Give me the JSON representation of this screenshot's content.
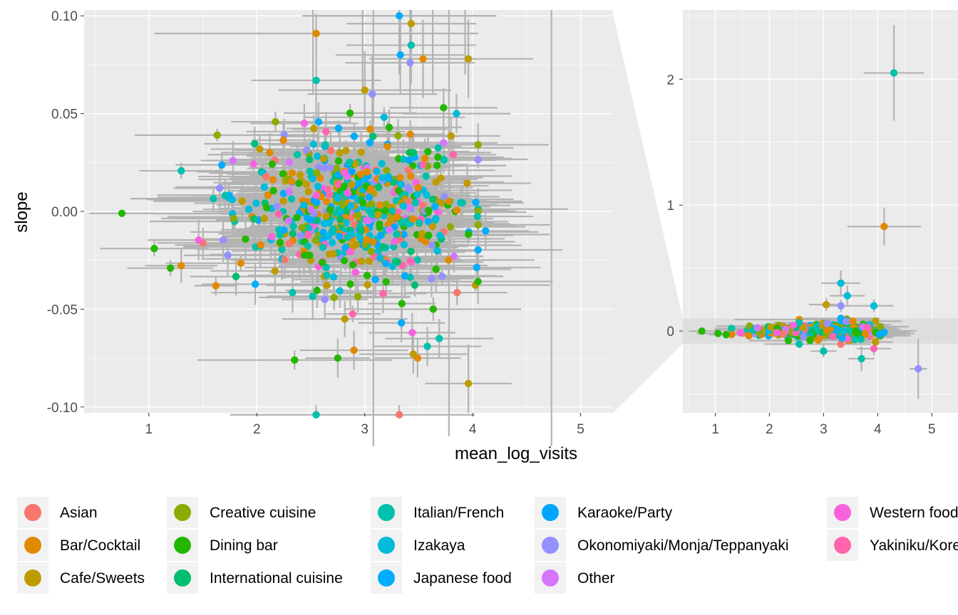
{
  "chart_data": [
    {
      "panel": "main",
      "type": "scatter",
      "subtype": "scatter with horizontal and vertical error bars",
      "xlabel": "mean_log_visits",
      "ylabel": "slope",
      "xlim": [
        0.4,
        5.3
      ],
      "ylim": [
        -0.103,
        0.103
      ],
      "x_ticks": [
        1,
        2,
        3,
        4,
        5
      ],
      "x_tick_labels": [
        "1",
        "2",
        "3",
        "4",
        "5"
      ],
      "y_ticks": [
        -0.1,
        -0.05,
        0,
        0.05,
        0.1
      ],
      "y_tick_labels": [
        "-0.10",
        "-0.05",
        "0.00",
        "0.05",
        "0.10"
      ],
      "grid": true,
      "error_bar_color": "#B3B3B3",
      "points": [
        {
          "x": 0.75,
          "y": -0.001,
          "category": "Dining bar",
          "xerr": 0.3,
          "yerr": 0
        },
        {
          "x": 1.05,
          "y": -0.019,
          "category": "Dining bar",
          "xerr": 0.5,
          "yerr": 0.004
        },
        {
          "x": 1.2,
          "y": -0.029,
          "category": "Dining bar",
          "xerr": 0.4,
          "yerr": 0.004
        },
        {
          "x": 1.62,
          "y": -0.038,
          "category": "Bar/Cocktail",
          "xerr": 0.2,
          "yerr": 0.005
        },
        {
          "x": 2.35,
          "y": -0.076,
          "category": "Dining bar",
          "xerr": 0.9,
          "yerr": 0.005
        },
        {
          "x": 2.55,
          "y": -0.104,
          "category": "Italian/French",
          "xerr": 0.8,
          "yerr": 0.005
        },
        {
          "x": 2.55,
          "y": 0.091,
          "category": "Bar/Cocktail",
          "xerr": 1.5,
          "yerr": 0.01
        },
        {
          "x": 2.55,
          "y": 0.067,
          "category": "Italian/French",
          "xerr": 0.6,
          "yerr": 0.02
        },
        {
          "x": 2.75,
          "y": -0.075,
          "category": "Dining bar",
          "xerr": 0.3,
          "yerr": 0.01
        },
        {
          "x": 2.9,
          "y": -0.071,
          "category": "Bar/Cocktail",
          "xerr": 0.5,
          "yerr": 0.01
        },
        {
          "x": 3.32,
          "y": -0.104,
          "category": "Asian",
          "xerr": 0.7,
          "yerr": 0.005
        },
        {
          "x": 3.32,
          "y": 0.1,
          "category": "Japanese food",
          "xerr": 0.9,
          "yerr": 0.03
        },
        {
          "x": 3.43,
          "y": 0.096,
          "category": "Cafe/Sweets",
          "xerr": 0.6,
          "yerr": 0.02
        },
        {
          "x": 3.43,
          "y": 0.085,
          "category": "Italian/French",
          "xerr": 0.6,
          "yerr": 0.02
        },
        {
          "x": 3.33,
          "y": 0.08,
          "category": "Japanese food",
          "xerr": 0.6,
          "yerr": 0.02
        },
        {
          "x": 3.42,
          "y": 0.076,
          "category": "Okonomiyaki/Monja/Teppanyaki",
          "xerr": 0.6,
          "yerr": 0.02
        },
        {
          "x": 3.54,
          "y": 0.078,
          "category": "Bar/Cocktail",
          "xerr": 0.5,
          "yerr": 0.02
        },
        {
          "x": 3.96,
          "y": 0.078,
          "category": "Cafe/Sweets",
          "xerr": 0.6,
          "yerr": 0.02
        },
        {
          "x": 3.96,
          "y": -0.088,
          "category": "Cafe/Sweets",
          "xerr": 0.4,
          "yerr": 0.02
        },
        {
          "x": 3.45,
          "y": -0.073,
          "category": "Cafe/Sweets",
          "xerr": 0.5,
          "yerr": 0.01
        },
        {
          "x": 3.49,
          "y": -0.075,
          "category": "Bar/Cocktail",
          "xerr": 0.4,
          "yerr": 0.01
        },
        {
          "x": 3.58,
          "y": -0.069,
          "category": "Italian/French",
          "xerr": 0.5,
          "yerr": 0.01
        },
        {
          "x": 3.69,
          "y": -0.065,
          "category": "Italian/French",
          "xerr": 0.5,
          "yerr": 0.01
        },
        {
          "x": 3.44,
          "y": -0.062,
          "category": "Western food",
          "xerr": 0.4,
          "yerr": 0.01
        },
        {
          "x": 3.34,
          "y": -0.057,
          "category": "Japanese food",
          "xerr": 0.4,
          "yerr": 0.01
        },
        {
          "x": 3.85,
          "y": 0.05,
          "category": "Izakaya",
          "xerr": 0.5,
          "yerr": 0.01
        },
        {
          "x": 3.73,
          "y": 0.053,
          "category": "Dining bar",
          "xerr": 0.5,
          "yerr": 0.01
        },
        {
          "x": 3.73,
          "y": 0.035,
          "category": "Other",
          "xerr": 0.5,
          "yerr": 0.01
        },
        {
          "x": 3.82,
          "y": 0.029,
          "category": "Yakiniku/Korean food",
          "xerr": 0.4,
          "yerr": 0.01
        },
        {
          "x": 4.12,
          "y": -0.01,
          "category": "Japanese food",
          "xerr": 0.4,
          "yerr": 0.01
        },
        {
          "x": 1.78,
          "y": 0.026,
          "category": "Other",
          "xerr": 0.3,
          "yerr": 0.01
        },
        {
          "x": 2.44,
          "y": 0.045,
          "category": "Western food",
          "xerr": 0.5,
          "yerr": 0.01
        },
        {
          "x": 2.63,
          "y": -0.045,
          "category": "Okonomiyaki/Monja/Teppanyaki",
          "xerr": 0.4,
          "yerr": 0.01
        },
        {
          "x": 3.17,
          "y": -0.042,
          "category": "Yakiniku/Korean food",
          "xerr": 0.4,
          "yerr": 0.01
        },
        {
          "x": 3.0,
          "y": 0.062,
          "category": "Cafe/Sweets",
          "xerr": 0.8,
          "yerr": 0.02
        },
        {
          "x": 3.07,
          "y": 0.06,
          "category": "Okonomiyaki/Monja/Teppanyaki",
          "xerr": 0.6,
          "yerr": 0.02
        }
      ],
      "scatter_cloud": {
        "center_x": 2.9,
        "x_sd": 0.55,
        "center_y": 0.0,
        "y_sd": 0.018,
        "note": "dense cluster of several hundred points with error bars"
      }
    },
    {
      "panel": "zoom",
      "type": "scatter",
      "subtype": "scatter with horizontal and vertical error bars (full y range)",
      "xlim": [
        0.4,
        5.3
      ],
      "ylim": [
        -0.65,
        2.55
      ],
      "x_ticks": [
        1,
        2,
        3,
        4,
        5
      ],
      "x_tick_labels": [
        "1",
        "2",
        "3",
        "4",
        "5"
      ],
      "y_ticks": [
        0,
        1,
        2
      ],
      "y_tick_labels": [
        "0",
        "1",
        "2"
      ],
      "highlight_band": [
        -0.1,
        0.1
      ],
      "points": [
        {
          "x": 4.3,
          "y": 2.05,
          "category": "Italian/French",
          "xerr": 0.7,
          "yerr": 0.38
        },
        {
          "x": 4.12,
          "y": 0.83,
          "category": "Bar/Cocktail",
          "xerr": 0.85,
          "yerr": 0.15
        },
        {
          "x": 4.75,
          "y": -0.3,
          "category": "Okonomiyaki/Monja/Teppanyaki",
          "xerr": 0.2,
          "yerr": 0.24
        },
        {
          "x": 3.32,
          "y": 0.38,
          "category": "Izakaya",
          "xerr": 0.45,
          "yerr": 0.1
        },
        {
          "x": 3.44,
          "y": 0.28,
          "category": "Izakaya",
          "xerr": 0.4,
          "yerr": 0.08
        },
        {
          "x": 3.32,
          "y": 0.2,
          "category": "Okonomiyaki/Monja/Teppanyaki",
          "xerr": 0.3,
          "yerr": 0.05
        },
        {
          "x": 3.05,
          "y": 0.21,
          "category": "Cafe/Sweets",
          "xerr": 0.4,
          "yerr": 0.05
        },
        {
          "x": 3.93,
          "y": 0.2,
          "category": "Izakaya",
          "xerr": 0.45,
          "yerr": 0.05
        },
        {
          "x": 3.7,
          "y": -0.22,
          "category": "Italian/French",
          "xerr": 0.3,
          "yerr": 0.1
        },
        {
          "x": 3.93,
          "y": -0.14,
          "category": "Yakiniku/Korean food",
          "xerr": 0.4,
          "yerr": 0.05
        },
        {
          "x": 3.0,
          "y": -0.16,
          "category": "Italian/French",
          "xerr": 0.3,
          "yerr": 0.05
        }
      ]
    }
  ],
  "legend": {
    "placement": "bottom",
    "items": [
      {
        "label": "Asian",
        "color": "#F8766D"
      },
      {
        "label": "Bar/Cocktail",
        "color": "#E18A00"
      },
      {
        "label": "Cafe/Sweets",
        "color": "#BE9C00"
      },
      {
        "label": "Creative cuisine",
        "color": "#8CAB00"
      },
      {
        "label": "Dining bar",
        "color": "#24B700"
      },
      {
        "label": "International cuisine",
        "color": "#00BE70"
      },
      {
        "label": "Italian/French",
        "color": "#00C1AB"
      },
      {
        "label": "Izakaya",
        "color": "#00BBDA"
      },
      {
        "label": "Japanese food",
        "color": "#00ACFC"
      },
      {
        "label": "Karaoke/Party",
        "color": "#00A5FF"
      },
      {
        "label": "Okonomiyaki/Monja/Teppanyaki",
        "color": "#9590FF"
      },
      {
        "label": "Other",
        "color": "#D575FE"
      },
      {
        "label": "Western food",
        "color": "#F962DD"
      },
      {
        "label": "Yakiniku/Korean food",
        "color": "#FF65AC"
      }
    ]
  }
}
